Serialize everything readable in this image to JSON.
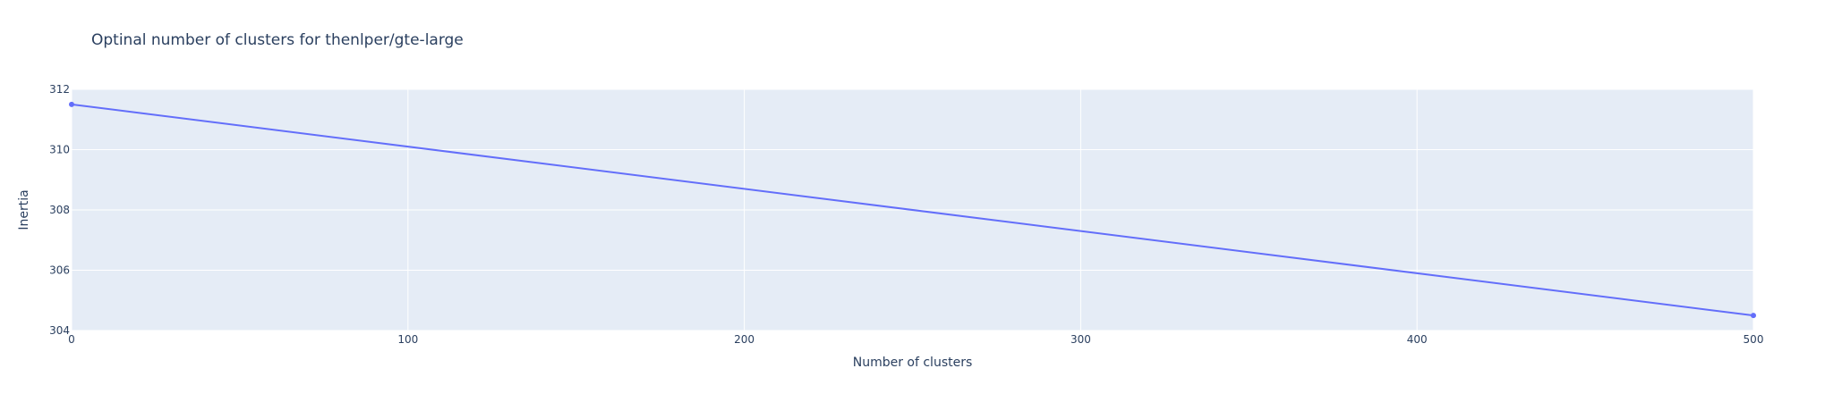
{
  "chart_data": {
    "type": "line",
    "title": "Optinal number of clusters for thenlper/gte-large",
    "xlabel": "Number of clusters",
    "ylabel": "Inertia",
    "xlim": [
      0,
      500
    ],
    "ylim": [
      304,
      312
    ],
    "x_ticks": [
      "0",
      "100",
      "200",
      "300",
      "400",
      "500"
    ],
    "y_ticks": [
      "304",
      "306",
      "308",
      "310",
      "312"
    ],
    "grid": true,
    "legend": "none",
    "colors": {
      "plot_background": "#e5ecf6",
      "grid": "#ffffff",
      "line": "#636efa",
      "text": "#2a3f5f"
    },
    "series": [
      {
        "x": [
          0,
          500
        ],
        "y": [
          311.5,
          304.5
        ]
      }
    ]
  }
}
